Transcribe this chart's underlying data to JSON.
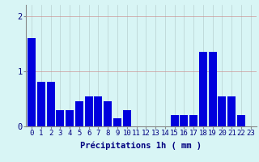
{
  "hours": [
    0,
    1,
    2,
    3,
    4,
    5,
    6,
    7,
    8,
    9,
    10,
    11,
    12,
    13,
    14,
    15,
    16,
    17,
    18,
    19,
    20,
    21,
    22,
    23
  ],
  "values": [
    1.6,
    0.8,
    0.8,
    0.3,
    0.3,
    0.45,
    0.55,
    0.55,
    0.45,
    0.15,
    0.3,
    0.0,
    0.0,
    0.0,
    0.0,
    0.2,
    0.2,
    0.2,
    1.35,
    1.35,
    0.55,
    0.55,
    0.2,
    0.0
  ],
  "bar_color": "#0000dd",
  "bg_color": "#d8f5f5",
  "grid_color": "#b8d0d0",
  "text_color": "#000080",
  "xlabel": "Précipitations 1h ( mm )",
  "ylim": [
    0,
    2.2
  ],
  "yticks": [
    0,
    1,
    2
  ],
  "xlabel_fontsize": 7.5,
  "tick_fontsize": 6.5
}
